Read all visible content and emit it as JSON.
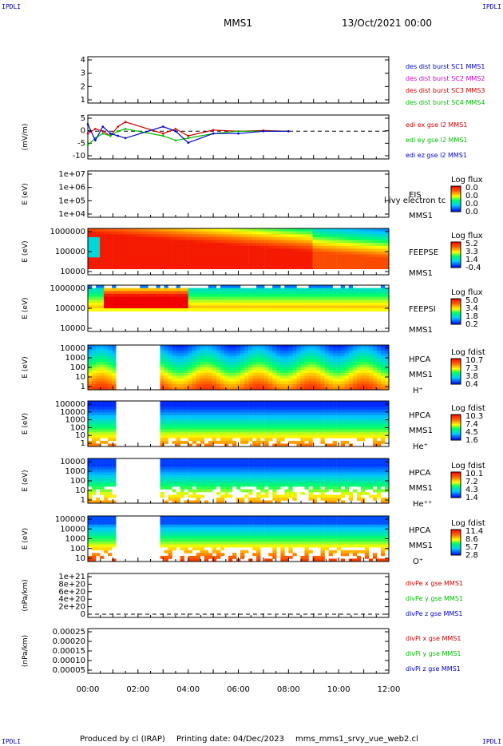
{
  "corner_mark": "IPDLI",
  "header": {
    "title": "MMS1",
    "date": "13/Oct/2021 00:00"
  },
  "footer": {
    "produced": "Produced by cl (IRAP)",
    "printing": "Printing date: 04/Dec/2023",
    "file": "mms_mms1_srvy_vue_web2.cl"
  },
  "colors": {
    "red": "#cc0000",
    "green": "#00bb00",
    "blue": "#0000cc",
    "magenta": "#cc00cc"
  },
  "chart_data": [
    {
      "type": "line",
      "ylabels": [
        "4",
        "3",
        "2",
        "1"
      ],
      "ylim": [
        0.5,
        4.5
      ],
      "ylabel": "",
      "legend": [
        {
          "text": "des dist burst SC1 MMS1",
          "color": "blue"
        },
        {
          "text": "des dist burst SC2 MMS2",
          "color": "magenta"
        },
        {
          "text": "des dist burst SC3 MMS3",
          "color": "red"
        },
        {
          "text": "des dist burst SC4 MMS4",
          "color": "green"
        }
      ]
    },
    {
      "type": "line",
      "ylabels": [
        "5",
        "0",
        "-5",
        "-10"
      ],
      "ylim": [
        -12,
        7
      ],
      "ylabel": "(mV/m)",
      "legend": [
        {
          "text": "edi ex gse l2 MMS1",
          "color": "red"
        },
        {
          "text": "edi ey gse l2 MMS1",
          "color": "green"
        },
        {
          "text": "edi ez gse l2 MMS1",
          "color": "blue"
        }
      ],
      "series": [
        {
          "name": "edi ex gse l2 MMS1",
          "x": [
            0.0,
            0.3,
            0.6,
            0.9,
            1.2,
            1.5,
            3.0,
            3.5,
            4.0,
            5.0,
            6.0,
            7.0,
            8.0
          ],
          "y": [
            -1,
            1,
            0,
            -2,
            2,
            4,
            -1,
            1,
            -2,
            0.5,
            0,
            0.3,
            0
          ]
        },
        {
          "name": "edi ey gse l2 MMS1",
          "x": [
            0.0,
            0.3,
            0.6,
            0.9,
            1.2,
            1.5,
            3.0,
            3.5,
            4.0,
            5.0,
            6.0,
            7.0,
            8.0
          ],
          "y": [
            -6,
            -3,
            -1,
            -2,
            0,
            1,
            -2,
            -4,
            -3,
            -1,
            0,
            0,
            0
          ]
        },
        {
          "name": "edi ez gse l2 MMS1",
          "x": [
            0.0,
            0.3,
            0.6,
            0.9,
            1.2,
            1.5,
            3.0,
            3.5,
            4.0,
            5.0,
            6.0,
            7.0,
            8.0
          ],
          "y": [
            3,
            -4,
            2,
            -1,
            -2,
            -3,
            2,
            0,
            -5,
            -1,
            -1,
            0,
            0
          ]
        }
      ]
    },
    {
      "type": "heatmap",
      "ylabels": [
        "1e+07",
        "1e+06",
        "1e+05",
        "1e+04"
      ],
      "ylabel": "E (eV)",
      "inst": [
        "EIS",
        "MMS1"
      ],
      "note": "l ivy electron tc",
      "cb_title": "Log flux",
      "cb_ticks": [
        "0.0",
        "0.0",
        "0.0",
        "0.0"
      ]
    },
    {
      "type": "heatmap",
      "ylabels": [
        "1000000",
        "100000",
        "10000"
      ],
      "ylabel": "E (eV)",
      "inst": [
        "FEEPSE",
        "MMS1"
      ],
      "cb_title": "Log flux",
      "cb_ticks": [
        "5.2",
        "3.3",
        "1.4",
        "-0.4"
      ]
    },
    {
      "type": "heatmap",
      "ylabels": [
        "1000000",
        "100000",
        "10000"
      ],
      "ylabel": "E (eV)",
      "inst": [
        "FEEPSI",
        "MMS1"
      ],
      "cb_title": "Log flux",
      "cb_ticks": [
        "5.0",
        "3.4",
        "1.8",
        "0.2"
      ]
    },
    {
      "type": "heatmap",
      "ylabels": [
        "10000",
        "1000",
        "100",
        "10",
        "1"
      ],
      "ylabel": "E (eV)",
      "inst": [
        "HPCA",
        "MMS1"
      ],
      "species": "H⁺",
      "cb_title": "Log fdist",
      "cb_ticks": [
        "10.7",
        "7.3",
        "3.8",
        "0.4"
      ]
    },
    {
      "type": "heatmap",
      "ylabels": [
        "100000",
        "10000",
        "1000",
        "100",
        "10",
        "1"
      ],
      "ylabel": "E (eV)",
      "inst": [
        "HPCA",
        "MMS1"
      ],
      "species": "He⁺",
      "cb_title": "Log fdist",
      "cb_ticks": [
        "10.3",
        "7.4",
        "4.5",
        "1.6"
      ]
    },
    {
      "type": "heatmap",
      "ylabels": [
        "10000",
        "1000",
        "100",
        "10",
        "1"
      ],
      "ylabel": "E (eV)",
      "inst": [
        "HPCA",
        "MMS1"
      ],
      "species": "He⁺⁺",
      "cb_title": "Log fdist",
      "cb_ticks": [
        "10.1",
        "7.2",
        "4.3",
        "1.4"
      ]
    },
    {
      "type": "heatmap",
      "ylabels": [
        "100000",
        "10000",
        "1000",
        "100",
        "10"
      ],
      "ylabel": "E (eV)",
      "inst": [
        "HPCA",
        "MMS1"
      ],
      "species": "O⁺",
      "cb_title": "Log fdist",
      "cb_ticks": [
        "11.4",
        "8.6",
        "5.7",
        "2.8"
      ]
    },
    {
      "type": "line",
      "ylabels": [
        "1e+21",
        "8e+20",
        "6e+20",
        "4e+20",
        "2e+20",
        "0"
      ],
      "ylabel": "(nPa/km)",
      "legend": [
        {
          "text": "divPe x gse MMS1",
          "color": "red"
        },
        {
          "text": "divPe y gse MMS1",
          "color": "green"
        },
        {
          "text": "divPe z gse MMS1",
          "color": "blue"
        }
      ]
    },
    {
      "type": "line",
      "ylabels": [
        "0.00025",
        "0.00020",
        "0.00015",
        "0.00010",
        "0.00005"
      ],
      "ylabel": "(nPa/km)",
      "legend": [
        {
          "text": "divPi x gse MMS1",
          "color": "red"
        },
        {
          "text": "divPi y gse MMS1",
          "color": "green"
        },
        {
          "text": "divPi z gse MMS1",
          "color": "blue"
        }
      ]
    }
  ],
  "xaxis": {
    "ticks": [
      "00:00",
      "02:00",
      "04:00",
      "06:00",
      "08:00",
      "10:00",
      "12:00"
    ],
    "xlim": [
      0,
      12
    ]
  }
}
